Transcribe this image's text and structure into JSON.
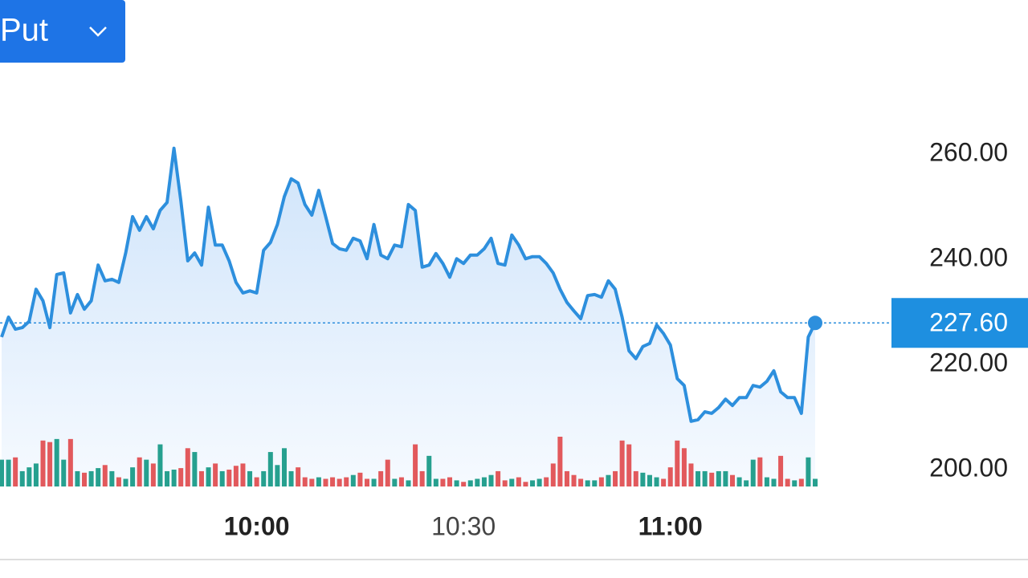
{
  "button": {
    "label": "Put"
  },
  "chart_data": {
    "type": "line",
    "x": [
      "09:23",
      "09:24",
      "09:25",
      "09:26",
      "09:27",
      "09:28",
      "09:29",
      "09:30",
      "09:31",
      "09:32",
      "09:33",
      "09:34",
      "09:35",
      "09:36",
      "09:37",
      "09:38",
      "09:39",
      "09:40",
      "09:41",
      "09:42",
      "09:43",
      "09:44",
      "09:45",
      "09:46",
      "09:47",
      "09:48",
      "09:49",
      "09:50",
      "09:51",
      "09:52",
      "09:53",
      "09:54",
      "09:55",
      "09:56",
      "09:57",
      "09:58",
      "09:59",
      "10:00",
      "10:01",
      "10:02",
      "10:03",
      "10:04",
      "10:05",
      "10:06",
      "10:07",
      "10:08",
      "10:09",
      "10:10",
      "10:11",
      "10:12",
      "10:13",
      "10:14",
      "10:15",
      "10:16",
      "10:17",
      "10:18",
      "10:19",
      "10:20",
      "10:21",
      "10:22",
      "10:23",
      "10:24",
      "10:25",
      "10:26",
      "10:27",
      "10:28",
      "10:29",
      "10:30",
      "10:31",
      "10:32",
      "10:33",
      "10:34",
      "10:35",
      "10:36",
      "10:37",
      "10:38",
      "10:39",
      "10:40",
      "10:41",
      "10:42",
      "10:43",
      "10:44",
      "10:45",
      "10:46",
      "10:47",
      "10:48",
      "10:49",
      "10:50",
      "10:51",
      "10:52",
      "10:53",
      "10:54",
      "10:55",
      "10:56",
      "10:57",
      "10:58",
      "10:59",
      "11:00",
      "11:01",
      "11:02",
      "11:03",
      "11:04",
      "11:05",
      "11:06",
      "11:07",
      "11:08",
      "11:09",
      "11:10",
      "11:11",
      "11:12",
      "11:13",
      "11:14",
      "11:15",
      "11:16",
      "11:17",
      "11:18",
      "11:19",
      "11:20",
      "11:21"
    ],
    "series": [
      {
        "color": "#2d8fdd",
        "values": [
          224.9,
          228.7,
          226.4,
          226.7,
          227.9,
          234.0,
          231.8,
          226.7,
          236.8,
          237.1,
          229.5,
          233.0,
          230.2,
          231.8,
          238.6,
          235.6,
          235.9,
          235.3,
          240.9,
          247.8,
          245.2,
          247.8,
          245.5,
          249.0,
          250.5,
          260.8,
          250.8,
          239.4,
          240.9,
          238.6,
          249.6,
          242.4,
          242.4,
          239.4,
          235.3,
          233.3,
          233.7,
          233.3,
          241.4,
          242.9,
          246.3,
          251.6,
          255.0,
          254.2,
          250.1,
          248.1,
          252.8,
          247.8,
          242.7,
          241.7,
          241.4,
          243.7,
          243.2,
          239.8,
          246.3,
          240.5,
          239.8,
          242.4,
          242.1,
          250.1,
          249.0,
          238.2,
          238.6,
          240.8,
          238.9,
          236.3,
          239.8,
          238.9,
          240.5,
          240.5,
          241.7,
          243.7,
          238.9,
          238.6,
          244.3,
          242.4,
          239.8,
          240.2,
          240.2,
          238.9,
          237.1,
          234.0,
          231.5,
          229.9,
          228.4,
          232.8,
          233.0,
          232.5,
          235.6,
          234.0,
          228.7,
          222.3,
          220.8,
          223.1,
          223.7,
          227.2,
          225.6,
          223.4,
          217.0,
          215.7,
          208.9,
          209.2,
          210.7,
          210.4,
          211.5,
          213.1,
          211.9,
          213.4,
          213.4,
          215.7,
          215.4,
          216.5,
          218.5,
          214.5,
          213.4,
          213.4,
          210.4,
          224.9,
          227.6
        ]
      }
    ],
    "volume": {
      "up_color": "#26a08f",
      "down_color": "#e2595c",
      "values": [
        35,
        35,
        38,
        20,
        25,
        30,
        60,
        58,
        62,
        35,
        62,
        20,
        18,
        20,
        24,
        28,
        20,
        12,
        10,
        25,
        38,
        35,
        30,
        55,
        20,
        22,
        24,
        50,
        45,
        20,
        25,
        30,
        20,
        22,
        27,
        30,
        20,
        12,
        20,
        45,
        28,
        50,
        20,
        25,
        12,
        10,
        12,
        10,
        12,
        10,
        12,
        15,
        18,
        10,
        10,
        20,
        35,
        10,
        12,
        8,
        55,
        20,
        40,
        10,
        10,
        12,
        8,
        6,
        8,
        10,
        12,
        15,
        20,
        8,
        10,
        12,
        6,
        8,
        10,
        12,
        30,
        65,
        20,
        15,
        10,
        8,
        8,
        12,
        15,
        20,
        60,
        55,
        20,
        18,
        15,
        12,
        10,
        25,
        60,
        50,
        30,
        20,
        20,
        18,
        20,
        20,
        15,
        12,
        8,
        35,
        38,
        12,
        10,
        40,
        10,
        8,
        10,
        38,
        10
      ]
    },
    "last_price": {
      "value": 227.6,
      "label": "227.60"
    },
    "xlim": [
      "09:23",
      "11:21"
    ],
    "xticks": [
      "10:00",
      "10:30",
      "11:00"
    ],
    "ylim": [
      196.5,
      289
    ],
    "yticks": [
      {
        "value": 200,
        "label": "200.00"
      },
      {
        "value": 220,
        "label": "220.00"
      },
      {
        "value": 240,
        "label": "240.00"
      },
      {
        "value": 260,
        "label": "260.00"
      }
    ]
  }
}
